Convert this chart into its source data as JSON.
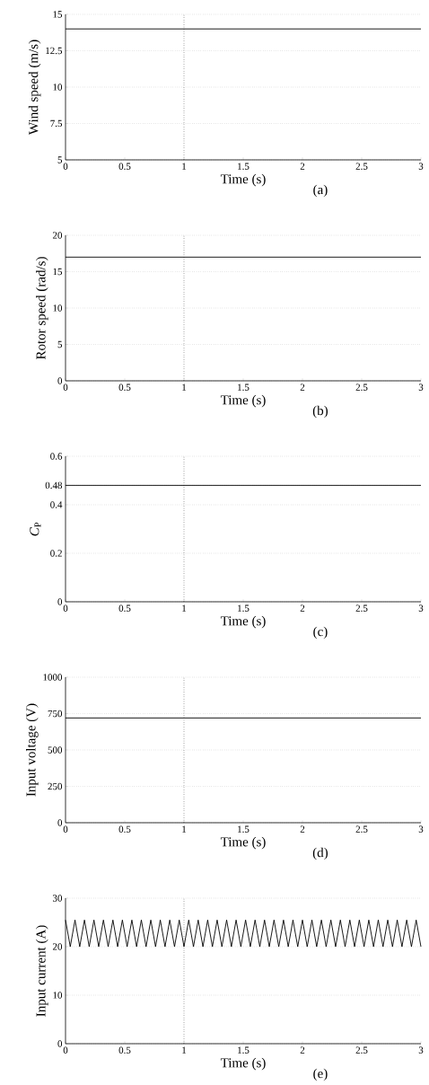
{
  "chart_data": [
    {
      "type": "line",
      "xlabel": "Time (s)",
      "ylabel": "Wind speed (m/s)",
      "annotations": [
        "(a)"
      ],
      "xlim": [
        0,
        3
      ],
      "ylim": [
        5,
        15
      ],
      "xticks": [
        0,
        0.5,
        1,
        1.5,
        2,
        2.5,
        3
      ],
      "yticks": [
        5,
        7.5,
        10,
        12.5,
        15
      ],
      "grid": "y",
      "ref_lines": [
        {
          "axis": "x",
          "value": 1,
          "line_style": "dotted"
        }
      ],
      "series": [
        {
          "color": "#000000",
          "x": [
            0,
            3
          ],
          "values": [
            14,
            14
          ]
        }
      ]
    },
    {
      "type": "line",
      "xlabel": "Time (s)",
      "ylabel": "Rotor speed (rad/s)",
      "annotations": [
        "(b)"
      ],
      "xlim": [
        0,
        3
      ],
      "ylim": [
        0,
        20
      ],
      "xticks": [
        0,
        0.5,
        1,
        1.5,
        2,
        2.5,
        3
      ],
      "yticks": [
        0,
        5,
        10,
        15,
        20
      ],
      "grid": "y",
      "ref_lines": [
        {
          "axis": "x",
          "value": 1,
          "line_style": "dotted"
        }
      ],
      "series": [
        {
          "color": "#000000",
          "x": [
            0,
            3
          ],
          "values": [
            17,
            17
          ]
        }
      ]
    },
    {
      "type": "line",
      "xlabel": "Time (s)",
      "ylabel": "*C*$_{P}$",
      "annotations": [
        "(c)"
      ],
      "xlim": [
        0,
        3
      ],
      "ylim": [
        0,
        0.6
      ],
      "xticks": [
        0,
        0.5,
        1,
        1.5,
        2,
        2.5,
        3
      ],
      "yticks": [
        0,
        0.2,
        0.4,
        0.48,
        0.6
      ],
      "grid": "y",
      "ref_lines": [
        {
          "axis": "x",
          "value": 1,
          "line_style": "dotted"
        }
      ],
      "series": [
        {
          "color": "#000000",
          "x": [
            0,
            3
          ],
          "values": [
            0.48,
            0.48
          ]
        }
      ]
    },
    {
      "type": "line",
      "xlabel": "Time (s)",
      "ylabel": "Input voltage (V)",
      "annotations": [
        "(d)"
      ],
      "xlim": [
        0,
        3
      ],
      "ylim": [
        0,
        1000
      ],
      "xticks": [
        0,
        0.5,
        1,
        1.5,
        2,
        2.5,
        3
      ],
      "yticks": [
        0,
        250,
        500,
        750,
        1000
      ],
      "grid": "y",
      "ref_lines": [
        {
          "axis": "x",
          "value": 1,
          "line_style": "dotted"
        }
      ],
      "series": [
        {
          "color": "#000000",
          "x": [
            0,
            3
          ],
          "values": [
            720,
            720
          ]
        }
      ]
    },
    {
      "type": "line",
      "xlabel": "Time (s)",
      "ylabel": "Input current (A)",
      "annotations": [
        "(e)"
      ],
      "xlim": [
        0,
        3
      ],
      "ylim": [
        0,
        30
      ],
      "xticks": [
        0,
        0.5,
        1,
        1.5,
        2,
        2.5,
        3
      ],
      "yticks": [
        0,
        10,
        20,
        30
      ],
      "grid": "y",
      "ref_lines": [
        {
          "axis": "x",
          "value": 1,
          "line_style": "dotted"
        }
      ],
      "series": [
        {
          "color": "#000000",
          "x": [
            0,
            0.04,
            0.08,
            0.12,
            0.16,
            0.2,
            0.24,
            0.28,
            0.32,
            0.36,
            0.4,
            0.44,
            0.48,
            0.52,
            0.56,
            0.6,
            0.64,
            0.68,
            0.72,
            0.76,
            0.8,
            0.84,
            0.88,
            0.92,
            0.96,
            1,
            1.04,
            1.08,
            1.12,
            1.16,
            1.2,
            1.24,
            1.28,
            1.32,
            1.36,
            1.4,
            1.44,
            1.48,
            1.52,
            1.56,
            1.6,
            1.64,
            1.68,
            1.72,
            1.76,
            1.8,
            1.84,
            1.88,
            1.92,
            1.96,
            2,
            2.04,
            2.08,
            2.12,
            2.16,
            2.2,
            2.24,
            2.28,
            2.32,
            2.36,
            2.4,
            2.44,
            2.48,
            2.52,
            2.56,
            2.6,
            2.64,
            2.68,
            2.72,
            2.76,
            2.8,
            2.84,
            2.88,
            2.92,
            2.96,
            3
          ],
          "values": [
            25.5,
            20,
            25.5,
            20,
            25.5,
            20,
            25.5,
            20,
            25.5,
            20,
            25.5,
            20,
            25.5,
            20,
            25.5,
            20,
            25.5,
            20,
            25.5,
            20,
            25.5,
            20,
            25.5,
            20,
            25.5,
            20,
            25.5,
            20,
            25.5,
            20,
            25.5,
            20,
            25.5,
            20,
            25.5,
            20,
            25.5,
            20,
            25.5,
            20,
            25.5,
            20,
            25.5,
            20,
            25.5,
            20,
            25.5,
            20,
            25.5,
            20,
            25.5,
            20,
            25.5,
            20,
            25.5,
            20,
            25.5,
            20,
            25.5,
            20,
            25.5,
            20,
            25.5,
            20,
            25.5,
            20,
            25.5,
            20,
            25.5,
            20,
            25.5,
            20,
            25.5,
            20,
            25.5,
            20
          ]
        }
      ]
    }
  ]
}
